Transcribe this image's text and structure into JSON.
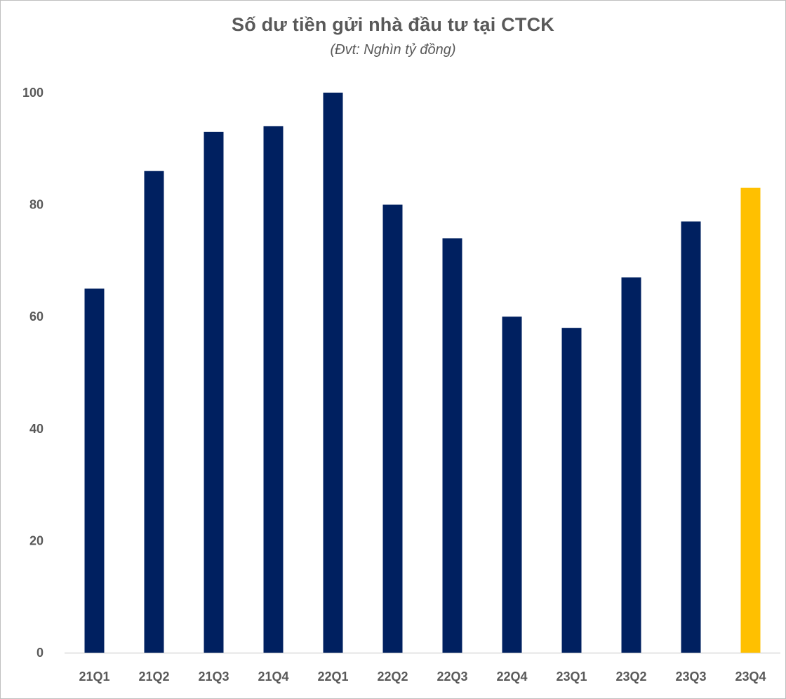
{
  "chart_data": {
    "type": "bar",
    "title": "Số dư tiền gửi nhà đầu tư tại CTCK",
    "subtitle": "(Đvt: Nghìn tỷ đồng)",
    "xlabel": "",
    "ylabel": "",
    "categories": [
      "21Q1",
      "21Q2",
      "21Q3",
      "21Q4",
      "22Q1",
      "22Q2",
      "22Q3",
      "22Q4",
      "23Q1",
      "23Q2",
      "23Q3",
      "23Q4"
    ],
    "values": [
      65,
      86,
      93,
      94,
      100,
      80,
      74,
      60,
      58,
      67,
      77,
      83
    ],
    "bar_colors": [
      "#002060",
      "#002060",
      "#002060",
      "#002060",
      "#002060",
      "#002060",
      "#002060",
      "#002060",
      "#002060",
      "#002060",
      "#002060",
      "#FFC000"
    ],
    "ylim": [
      0,
      100
    ],
    "yticks": [
      0,
      20,
      40,
      60,
      80,
      100
    ],
    "grid": false,
    "legend": "none"
  }
}
